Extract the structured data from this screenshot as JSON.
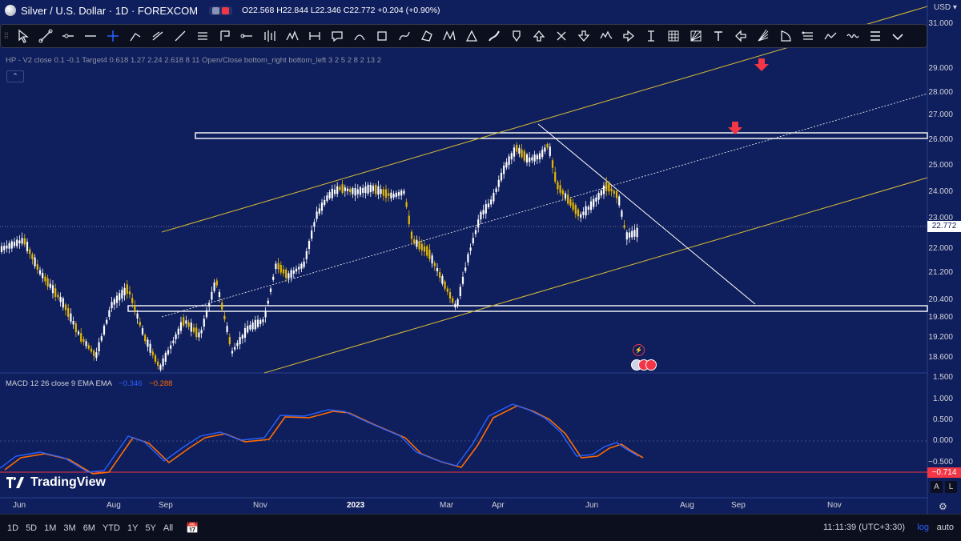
{
  "header": {
    "symbol_title": "Silver / U.S. Dollar · 1D · FOREXCOM",
    "ohlc": "O22.568  H22.844  L22.346  C22.772  +0.204 (+0.90%)"
  },
  "indicator_line": "HP - V2 close 0.1 -0.1 Target4 0.618 1.27 2.24 2.618 8 11 Open/Close bottom_right bottom_left 3 2 5 2 8 2 13 2",
  "toolbar_icons": [
    "cursor-icon",
    "trend-line-icon",
    "ray-icon",
    "horizontal-line-icon",
    "crosshair-icon",
    "extended-line-icon",
    "info-line-icon",
    "angle-icon",
    "parallel-channel-icon",
    "callout-icon",
    "horizontal-ray-icon",
    "bars-pattern-icon",
    "elliott-wave-icon",
    "date-range-icon",
    "comment-icon",
    "arc-icon",
    "rectangle-icon",
    "curve-icon",
    "polygon-icon",
    "xabcd-pattern-icon",
    "triangle-icon",
    "brush-icon",
    "marker-icon",
    "arrow-up-icon",
    "cross-icon",
    "arrow-down-icon",
    "head-shoulders-icon",
    "arrow-right-icon",
    "anchored-text-icon",
    "grid-icon",
    "fib-fan-icon",
    "text-icon",
    "arrow-left-icon",
    "fib-wedge-icon",
    "arc-shape-icon",
    "list-icon",
    "path-icon",
    "pitchfork-icon",
    "menu-icon",
    "more-icon"
  ],
  "price_axis": {
    "currency": "USD",
    "labels": [
      "31.000",
      "29.000",
      "28.000",
      "27.000",
      "26.000",
      "25.000",
      "24.000",
      "23.000",
      "22.000",
      "21.200",
      "20.400",
      "19.800",
      "19.200",
      "18.600"
    ],
    "current_price": "22.772"
  },
  "macd": {
    "legend_name": "MACD 12 26 close 9 EMA EMA",
    "macd_value": "−0.346",
    "signal_value": "−0.288",
    "axis_labels": [
      "1.500",
      "1.000",
      "0.500",
      "0.000",
      "−0.500"
    ],
    "current_tag": "−0.714"
  },
  "time_axis": [
    "Jun",
    "Aug",
    "Sep",
    "Nov",
    "2023",
    "Mar",
    "Apr",
    "Jun",
    "Aug",
    "Sep",
    "Nov"
  ],
  "branding": {
    "logo_text": "TradingView"
  },
  "bottom_bar": {
    "ranges": [
      "1D",
      "5D",
      "1M",
      "3M",
      "6M",
      "YTD",
      "1Y",
      "5Y",
      "All"
    ],
    "clock": "11:11:39 (UTC+3:30)",
    "log": "log",
    "auto": "auto"
  },
  "scale_buttons": {
    "a": "A",
    "l": "L"
  },
  "colors": {
    "background": "#0f1e5c",
    "up_candle": "#ffffff",
    "down_candle": "#e6b800",
    "channel": "#c9b23a",
    "macd_line": "#2962ff",
    "signal_line": "#ff6d00",
    "alert_arrow": "#f23645"
  }
}
